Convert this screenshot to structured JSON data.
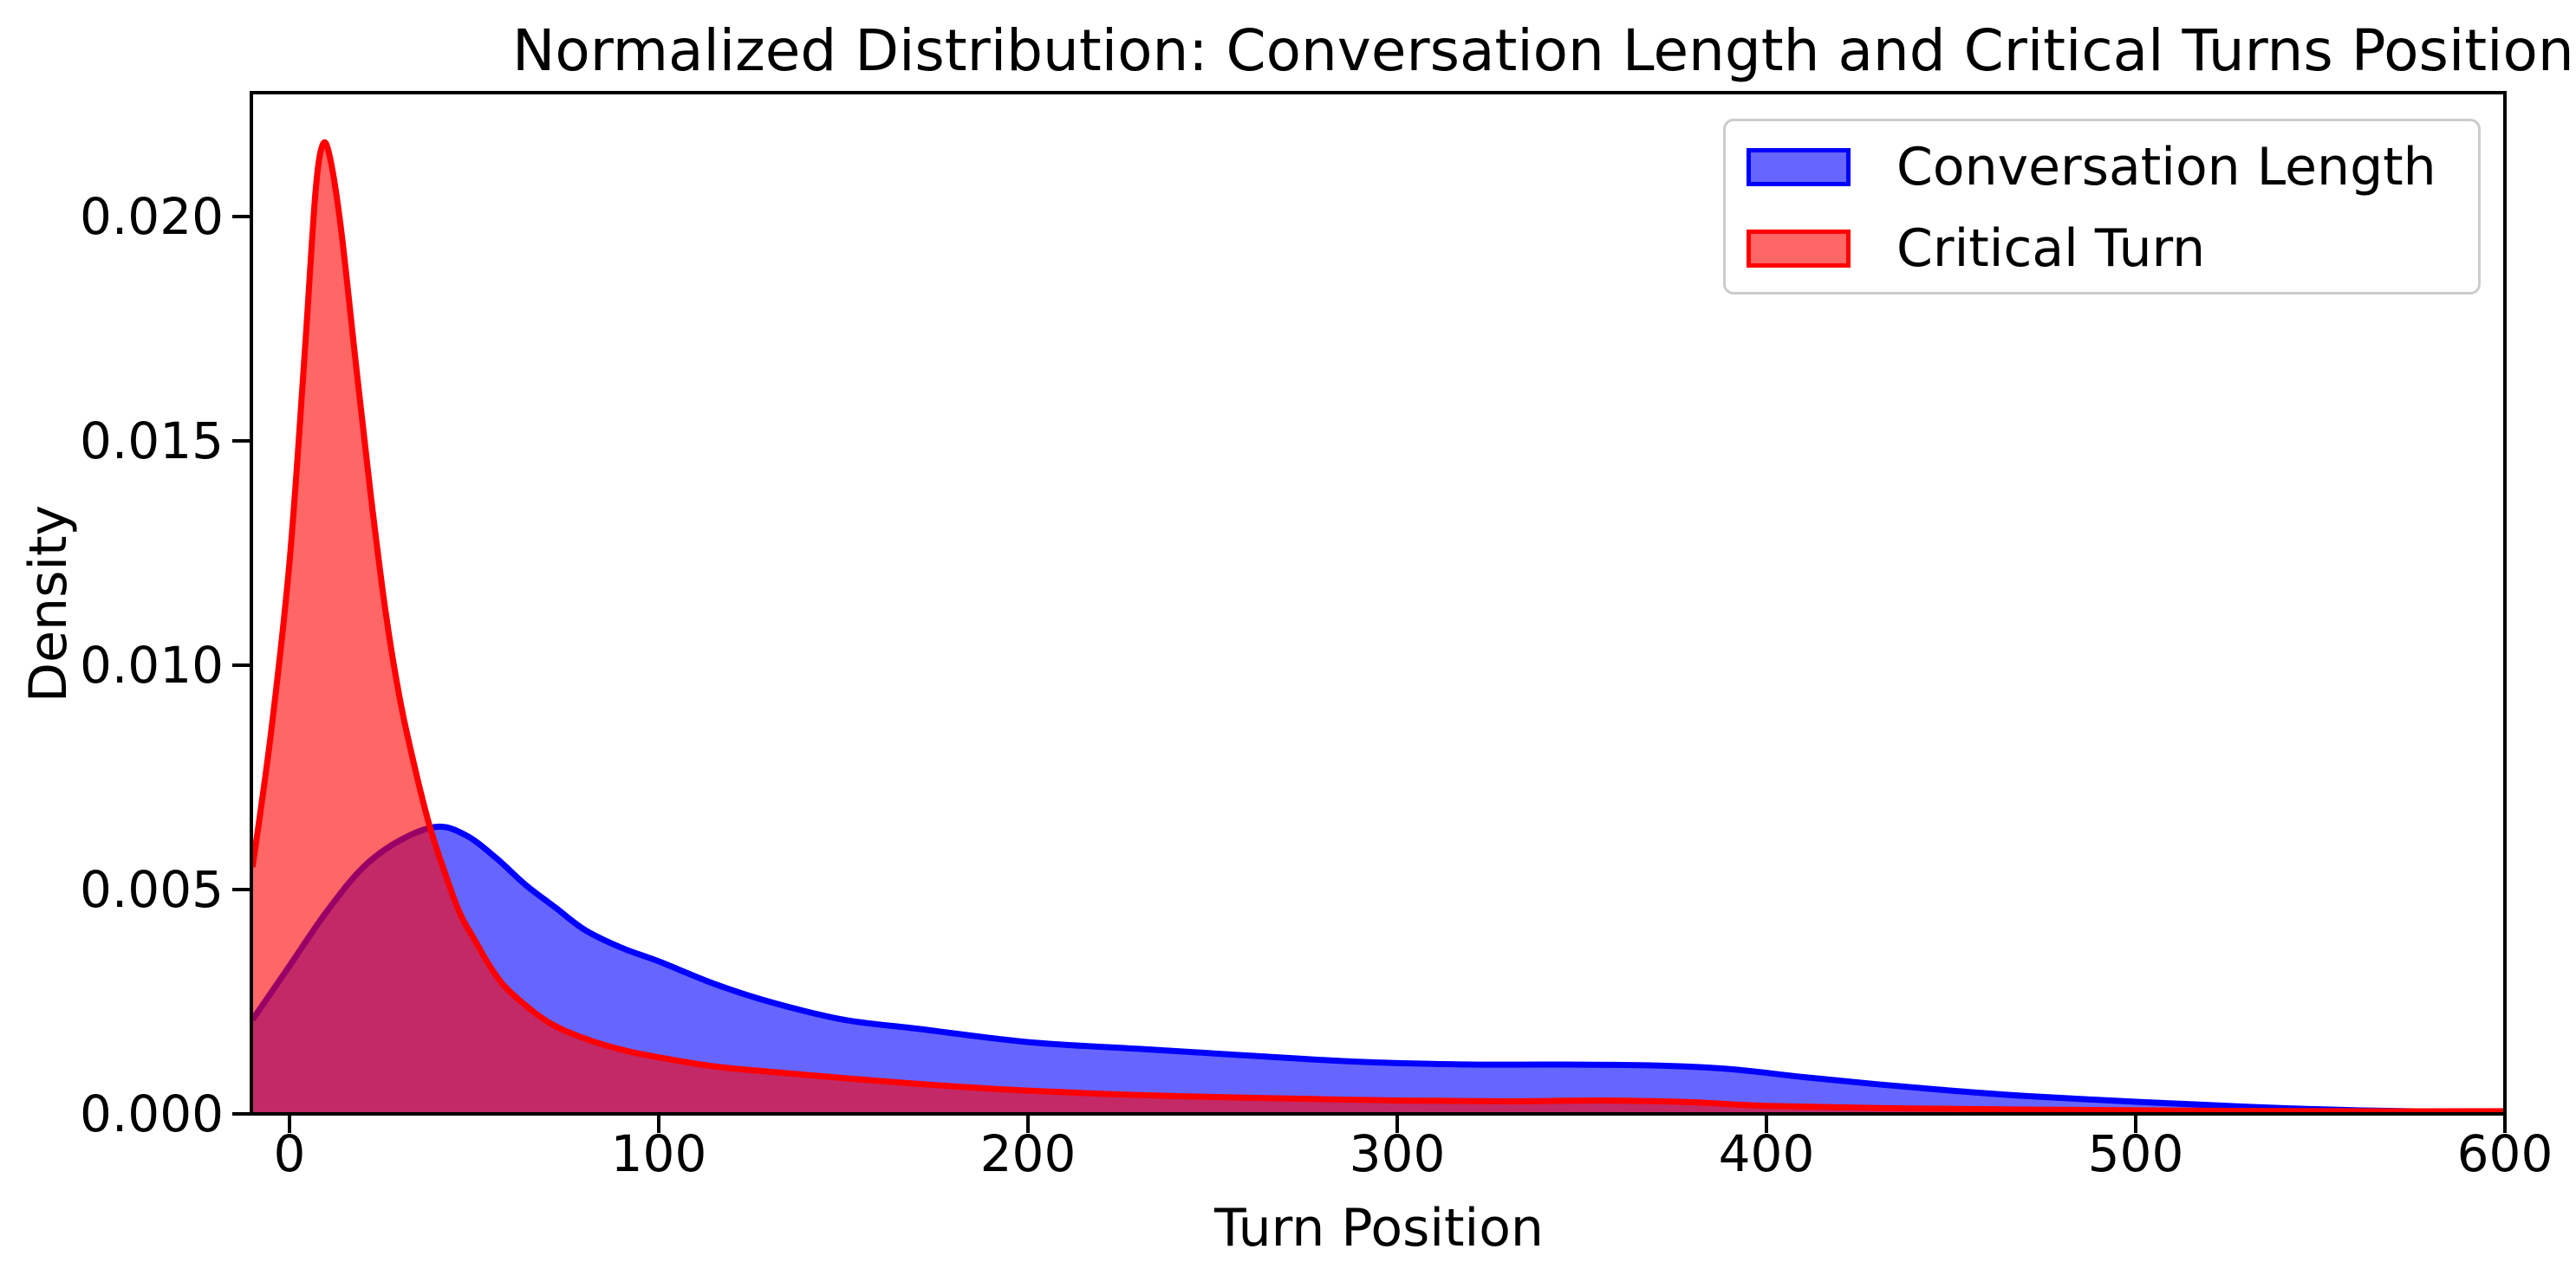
{
  "chart_data": {
    "type": "area",
    "subtype": "kde-density",
    "title": "Normalized Distribution: Conversation Length and Critical Turns Position",
    "xlabel": "Turn Position",
    "ylabel": "Density",
    "xlim": [
      -10.3,
      600
    ],
    "ylim": [
      0,
      0.0228
    ],
    "grid": false,
    "legend_position": "upper right",
    "x_ticks": [
      0,
      100,
      200,
      300,
      400,
      500,
      600
    ],
    "y_ticks": [
      0.0,
      0.005,
      0.01,
      0.015,
      0.02
    ],
    "y_tick_labels": [
      "0.000",
      "0.005",
      "0.010",
      "0.015",
      "0.020"
    ],
    "series": [
      {
        "name": "Conversation Length",
        "line_color": "#0000ff",
        "fill_color": "#0000ff",
        "fill_opacity": 0.6,
        "peak": {
          "x": 40,
          "density": 0.0064
        },
        "points": [
          [
            -10,
            0.0021
          ],
          [
            0,
            0.0033
          ],
          [
            10,
            0.0045
          ],
          [
            20,
            0.0055
          ],
          [
            30,
            0.0061
          ],
          [
            40,
            0.0064
          ],
          [
            48,
            0.0062
          ],
          [
            56,
            0.0057
          ],
          [
            64,
            0.0051
          ],
          [
            72,
            0.0046
          ],
          [
            80,
            0.0041
          ],
          [
            90,
            0.0037
          ],
          [
            100,
            0.0034
          ],
          [
            115,
            0.0029
          ],
          [
            130,
            0.0025
          ],
          [
            150,
            0.0021
          ],
          [
            170,
            0.0019
          ],
          [
            200,
            0.0016
          ],
          [
            230,
            0.00145
          ],
          [
            260,
            0.0013
          ],
          [
            290,
            0.00116
          ],
          [
            320,
            0.0011
          ],
          [
            345,
            0.0011
          ],
          [
            370,
            0.00108
          ],
          [
            390,
            0.001
          ],
          [
            410,
            0.00082
          ],
          [
            430,
            0.00066
          ],
          [
            450,
            0.00052
          ],
          [
            470,
            0.0004
          ],
          [
            500,
            0.00027
          ],
          [
            530,
            0.00016
          ],
          [
            560,
            8e-05
          ],
          [
            600,
            3e-05
          ]
        ]
      },
      {
        "name": "Critical Turn",
        "line_color": "#ff0000",
        "fill_color": "#ff0000",
        "fill_opacity": 0.6,
        "peak": {
          "x": 9,
          "density": 0.0216
        },
        "points": [
          [
            -10,
            0.0055
          ],
          [
            -5,
            0.0085
          ],
          [
            0,
            0.0123
          ],
          [
            4,
            0.0168
          ],
          [
            7,
            0.0205
          ],
          [
            9,
            0.0216
          ],
          [
            11,
            0.0213
          ],
          [
            14,
            0.0197
          ],
          [
            18,
            0.0167
          ],
          [
            22,
            0.0138
          ],
          [
            26,
            0.0112
          ],
          [
            30,
            0.0092
          ],
          [
            34,
            0.0077
          ],
          [
            38,
            0.0064
          ],
          [
            42,
            0.0054
          ],
          [
            46,
            0.0045
          ],
          [
            50,
            0.0039
          ],
          [
            55,
            0.0032
          ],
          [
            60,
            0.0027
          ],
          [
            70,
            0.00205
          ],
          [
            80,
            0.00168
          ],
          [
            90,
            0.00143
          ],
          [
            100,
            0.00126
          ],
          [
            115,
            0.00106
          ],
          [
            130,
            0.00094
          ],
          [
            150,
            0.0008
          ],
          [
            175,
            0.00064
          ],
          [
            200,
            0.00052
          ],
          [
            230,
            0.00042
          ],
          [
            260,
            0.00036
          ],
          [
            300,
            0.0003
          ],
          [
            330,
            0.00028
          ],
          [
            355,
            0.0003
          ],
          [
            380,
            0.00026
          ],
          [
            400,
            0.00018
          ],
          [
            440,
            0.00012
          ],
          [
            480,
            9e-05
          ],
          [
            520,
            7e-05
          ],
          [
            560,
            6e-05
          ],
          [
            600,
            6e-05
          ]
        ]
      }
    ]
  },
  "legend": {
    "entries": [
      {
        "label": "Conversation Length",
        "fill": "#6666ff",
        "stroke": "#0000ff"
      },
      {
        "label": "Critical Turn",
        "fill": "#ff6666",
        "stroke": "#ff0000"
      }
    ]
  },
  "colors": {
    "background": "#ffffff",
    "axis": "#000000",
    "legend_border": "#cccccc",
    "overlap_blend": "#c22966"
  }
}
